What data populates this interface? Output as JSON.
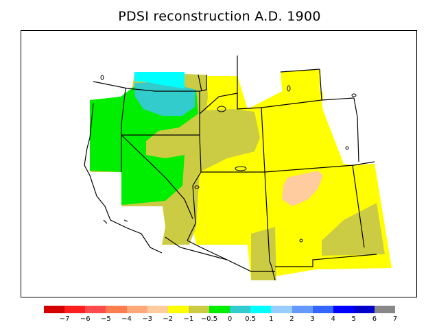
{
  "title": "PDSI reconstruction A.D. 1900",
  "legend": {
    "colors": [
      "#d40000",
      "#ff1e1e",
      "#ff4b4b",
      "#ff7d4f",
      "#ffa87a",
      "#ffcca0",
      "#ffff00",
      "#cccc44",
      "#00ee00",
      "#33cccc",
      "#00ffff",
      "#99ccff",
      "#6699ff",
      "#3366ff",
      "#0000ff",
      "#0000cc",
      "#888888"
    ],
    "labels": [
      "−7",
      "−6",
      "−5",
      "−4",
      "−3",
      "−2",
      "−1",
      "−0.5",
      "0",
      "0.5",
      "1",
      "2",
      "3",
      "4",
      "5",
      "6",
      "7"
    ]
  },
  "pdsi_colors": {
    "above_1": "#00ffff",
    "0.5_to_1": "#33cccc",
    "0_to_0.5": "#00ee00",
    "-0.5_to_0": "#cccc44",
    "-1_to_-0.5": "#ffff00",
    "-3_to_-2": "#ffcca0"
  }
}
